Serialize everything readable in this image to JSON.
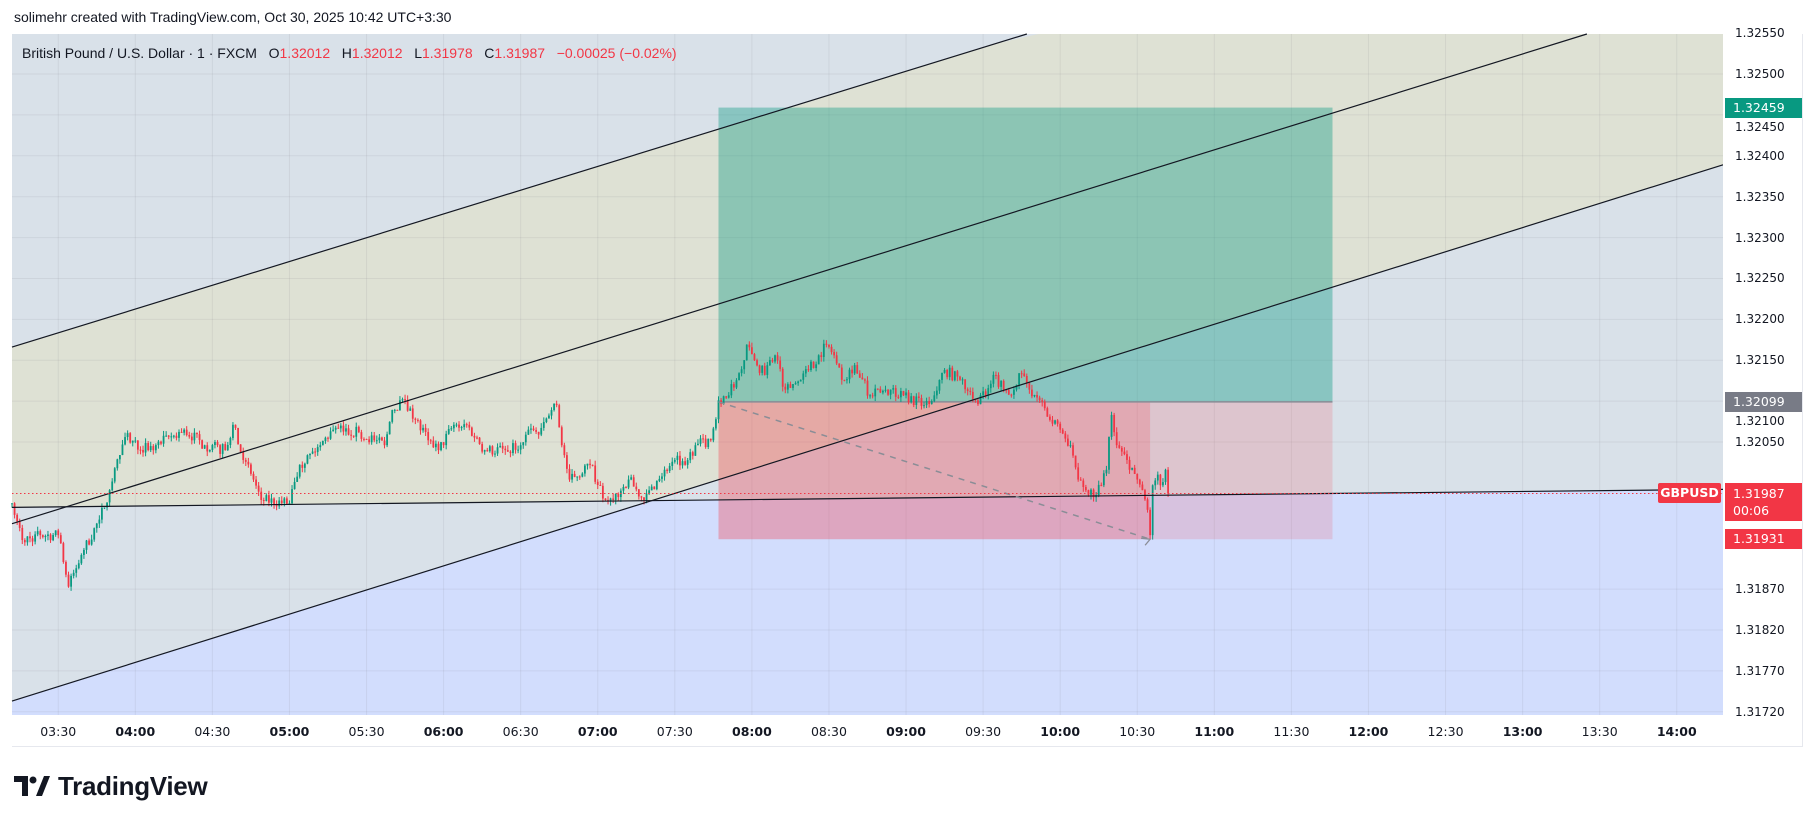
{
  "attribution": "solimehr created with TradingView.com, Oct 30, 2025 10:42 UTC+3:30",
  "legend": {
    "symbol_desc": "British Pound / U.S. Dollar · 1 · FXCM",
    "o_label": "O",
    "o": "1.32012",
    "h_label": "H",
    "h": "1.32012",
    "l_label": "L",
    "l": "1.31978",
    "c_label": "C",
    "c": "1.31987",
    "change": "−0.00025 (−0.02%)"
  },
  "colors": {
    "up": "#089981",
    "down": "#f23645",
    "bg_blue_grey": "#d9e1e9",
    "bg_beige": "#dee1d4",
    "bg_light_blue": "#d2ddfd",
    "target": "#089981",
    "entry": "#787b86",
    "stop": "#f23645"
  },
  "price_axis": {
    "ticks": [
      "1.32550",
      "1.32500",
      "1.32450",
      "1.32400",
      "1.32350",
      "1.32300",
      "1.32250",
      "1.32200",
      "1.32150",
      "1.32100",
      "1.32050",
      "1.31870",
      "1.31820",
      "1.31770",
      "1.31720"
    ],
    "labels": {
      "target": "1.32459",
      "entry": "1.32099",
      "current": "1.31987",
      "countdown": "00:06",
      "stop": "1.31931",
      "symbol_tag": "GBPUSD"
    }
  },
  "time_axis": {
    "labels": [
      "03:30",
      "04:00",
      "04:30",
      "05:00",
      "05:30",
      "06:00",
      "06:30",
      "07:00",
      "07:30",
      "08:00",
      "08:30",
      "09:00",
      "09:30",
      "10:00",
      "10:30",
      "11:00",
      "11:30",
      "12:00",
      "12:30",
      "13:00",
      "13:30",
      "14:00"
    ]
  },
  "chart_data": {
    "type": "candlestick",
    "symbol": "GBPUSD",
    "interval": "1",
    "xlim": [
      "03:12",
      "14:18"
    ],
    "ylim": [
      1.31716,
      1.32549
    ],
    "current_price": 1.31987,
    "price_path": [
      [
        "03:12",
        1.31975
      ],
      [
        "03:16",
        1.3193
      ],
      [
        "03:23",
        1.31936
      ],
      [
        "03:30",
        1.31936
      ],
      [
        "03:34",
        1.31873
      ],
      [
        "03:40",
        1.31918
      ],
      [
        "03:46",
        1.31955
      ],
      [
        "03:50",
        1.31991
      ],
      [
        "03:54",
        1.32034
      ],
      [
        "03:56",
        1.32056
      ],
      [
        "04:05",
        1.3204
      ],
      [
        "04:19",
        1.32065
      ],
      [
        "04:27",
        1.32046
      ],
      [
        "04:35",
        1.3204
      ],
      [
        "04:38",
        1.32071
      ],
      [
        "04:42",
        1.32028
      ],
      [
        "04:46",
        1.32004
      ],
      [
        "04:49",
        1.31979
      ],
      [
        "05:00",
        1.31975
      ],
      [
        "05:04",
        1.32022
      ],
      [
        "05:12",
        1.32046
      ],
      [
        "05:17",
        1.32065
      ],
      [
        "05:27",
        1.32062
      ],
      [
        "05:33",
        1.32052
      ],
      [
        "05:37",
        1.32046
      ],
      [
        "05:40",
        1.32089
      ],
      [
        "05:45",
        1.32101
      ],
      [
        "05:49",
        1.32077
      ],
      [
        "05:54",
        1.32052
      ],
      [
        "05:58",
        1.3204
      ],
      [
        "06:04",
        1.32071
      ],
      [
        "06:09",
        1.32071
      ],
      [
        "06:16",
        1.3204
      ],
      [
        "06:24",
        1.3204
      ],
      [
        "06:30",
        1.32046
      ],
      [
        "06:33",
        1.32065
      ],
      [
        "06:37",
        1.32059
      ],
      [
        "06:42",
        1.32089
      ],
      [
        "06:44",
        1.32095
      ],
      [
        "06:46",
        1.32046
      ],
      [
        "06:49",
        1.32004
      ],
      [
        "06:57",
        1.32022
      ],
      [
        "07:03",
        1.31979
      ],
      [
        "07:06",
        1.31979
      ],
      [
        "07:12",
        1.32004
      ],
      [
        "07:18",
        1.31979
      ],
      [
        "07:26",
        1.32016
      ],
      [
        "07:30",
        1.32028
      ],
      [
        "07:34",
        1.32022
      ],
      [
        "07:38",
        1.32046
      ],
      [
        "07:44",
        1.32052
      ],
      [
        "07:47",
        1.32101
      ],
      [
        "07:51",
        1.32107
      ],
      [
        "07:57",
        1.3215
      ],
      [
        "07:58",
        1.32169
      ],
      [
        "08:01",
        1.3215
      ],
      [
        "08:05",
        1.32132
      ],
      [
        "08:09",
        1.32156
      ],
      [
        "08:13",
        1.32114
      ],
      [
        "08:19",
        1.32126
      ],
      [
        "08:22",
        1.32138
      ],
      [
        "08:26",
        1.32156
      ],
      [
        "08:29",
        1.32169
      ],
      [
        "08:32",
        1.32156
      ],
      [
        "08:35",
        1.32126
      ],
      [
        "08:40",
        1.32144
      ],
      [
        "08:46",
        1.32107
      ],
      [
        "08:54",
        1.32114
      ],
      [
        "08:59",
        1.32107
      ],
      [
        "09:07",
        1.32095
      ],
      [
        "09:11",
        1.32107
      ],
      [
        "09:15",
        1.32138
      ],
      [
        "09:21",
        1.32126
      ],
      [
        "09:27",
        1.32101
      ],
      [
        "09:31",
        1.32107
      ],
      [
        "09:34",
        1.32132
      ],
      [
        "09:38",
        1.32114
      ],
      [
        "09:42",
        1.32114
      ],
      [
        "09:44",
        1.32134
      ],
      [
        "09:48",
        1.32114
      ],
      [
        "09:52",
        1.32101
      ],
      [
        "09:56",
        1.32077
      ],
      [
        "10:00",
        1.32065
      ],
      [
        "10:04",
        1.32046
      ],
      [
        "10:07",
        1.32004
      ],
      [
        "10:10",
        1.31991
      ],
      [
        "10:14",
        1.31985
      ],
      [
        "10:18",
        1.32016
      ],
      [
        "10:20",
        1.32083
      ],
      [
        "10:22",
        1.32046
      ],
      [
        "10:26",
        1.32028
      ],
      [
        "10:30",
        1.32004
      ],
      [
        "10:32",
        1.31991
      ],
      [
        "10:34",
        1.31967
      ],
      [
        "10:35",
        1.31936
      ],
      [
        "10:36",
        1.31997
      ],
      [
        "10:38",
        1.3201
      ],
      [
        "10:39",
        1.31997
      ],
      [
        "10:41",
        1.32016
      ],
      [
        "10:42",
        1.31987
      ]
    ],
    "drawings": {
      "channel_top": [
        [
          "03:12",
          1.32166
        ],
        [
          "09:46",
          1.32548
        ]
      ],
      "channel_middle": [
        [
          "03:12",
          1.3195
        ],
        [
          "13:24",
          1.32548
        ]
      ],
      "channel_bottom": [
        [
          "03:12",
          1.31733
        ],
        [
          "14:18",
          1.32389
        ]
      ],
      "horizontal_trendline": [
        [
          "03:12",
          1.3197
        ],
        [
          "14:18",
          1.31992
        ]
      ],
      "long_position": {
        "start": "07:47",
        "end": "11:46",
        "elapsed_until": "10:35",
        "entry": 1.32099,
        "target": 1.32459,
        "stop": 1.31931,
        "path": [
          [
            "07:47",
            1.32099
          ],
          [
            "10:35",
            1.31931
          ]
        ]
      }
    }
  },
  "branding": {
    "logo_text": "TradingView"
  }
}
